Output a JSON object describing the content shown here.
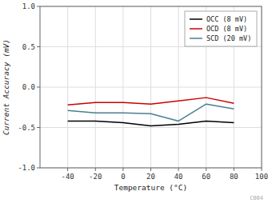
{
  "chart_data": {
    "type": "line",
    "xlabel": "Temperature (°C)",
    "ylabel": "Current Accuracy (mV)",
    "x": [
      -40,
      -20,
      0,
      20,
      40,
      60,
      80
    ],
    "series": [
      {
        "name": "OCC (8 mV)",
        "color": "#000000",
        "values": [
          -0.42,
          -0.42,
          -0.44,
          -0.48,
          -0.46,
          -0.42,
          -0.44
        ]
      },
      {
        "name": "OCD (8 mV)",
        "color": "#cc0000",
        "values": [
          -0.22,
          -0.19,
          -0.19,
          -0.21,
          -0.17,
          -0.13,
          -0.2
        ]
      },
      {
        "name": "SCD (20 mV)",
        "color": "#4a7f90",
        "values": [
          -0.29,
          -0.32,
          -0.32,
          -0.33,
          -0.42,
          -0.21,
          -0.27
        ]
      }
    ],
    "xlim": [
      -60,
      100
    ],
    "ylim": [
      -1,
      1
    ],
    "xticks": [
      -40,
      -20,
      0,
      20,
      40,
      60,
      80,
      100
    ],
    "yticks": [
      {
        "value": -1,
        "label": "-1.0"
      },
      {
        "value": -0.5,
        "label": "-0.5"
      },
      {
        "value": 0,
        "label": "0.0"
      },
      {
        "value": 0.5,
        "label": "0.5"
      },
      {
        "value": 1,
        "label": "1.0"
      }
    ],
    "grid": true,
    "legend": "upper right",
    "annotations": [
      "C004"
    ]
  }
}
